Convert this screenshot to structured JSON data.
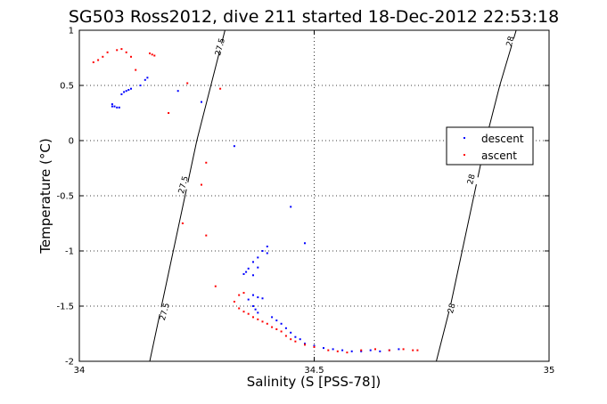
{
  "chart_data": {
    "type": "scatter",
    "title": "SG503 Ross2012, dive 211 started 18-Dec-2012 22:53:18",
    "xlabel": "Salinity (S [PSS-78])",
    "ylabel": "Temperature (°C)",
    "xlim": [
      34,
      35
    ],
    "ylim": [
      -2,
      1
    ],
    "xticks": [
      "34",
      "34.5",
      "35"
    ],
    "yticks": [
      "-2",
      "-1.5",
      "-1",
      "-0.5",
      "0",
      "0.5",
      "1"
    ],
    "grid": true,
    "legend_position": "right",
    "series": [
      {
        "name": "descent",
        "color": "#0000ff",
        "points": [
          [
            34.07,
            0.33
          ],
          [
            34.075,
            0.31
          ],
          [
            34.08,
            0.3
          ],
          [
            34.085,
            0.3
          ],
          [
            34.07,
            0.31
          ],
          [
            34.09,
            0.42
          ],
          [
            34.095,
            0.44
          ],
          [
            34.1,
            0.45
          ],
          [
            34.105,
            0.46
          ],
          [
            34.11,
            0.47
          ],
          [
            34.13,
            0.5
          ],
          [
            34.14,
            0.55
          ],
          [
            34.145,
            0.57
          ],
          [
            34.21,
            0.45
          ],
          [
            34.26,
            0.35
          ],
          [
            34.33,
            -0.05
          ],
          [
            34.45,
            -0.6
          ],
          [
            34.48,
            -0.93
          ],
          [
            34.4,
            -0.96
          ],
          [
            34.39,
            -1.0
          ],
          [
            34.4,
            -1.02
          ],
          [
            34.38,
            -1.06
          ],
          [
            34.37,
            -1.1
          ],
          [
            34.38,
            -1.15
          ],
          [
            34.37,
            -1.22
          ],
          [
            34.36,
            -1.16
          ],
          [
            34.355,
            -1.19
          ],
          [
            34.35,
            -1.21
          ],
          [
            34.37,
            -1.4
          ],
          [
            34.38,
            -1.42
          ],
          [
            34.39,
            -1.43
          ],
          [
            34.36,
            -1.44
          ],
          [
            34.37,
            -1.5
          ],
          [
            34.375,
            -1.53
          ],
          [
            34.38,
            -1.56
          ],
          [
            34.41,
            -1.6
          ],
          [
            34.42,
            -1.63
          ],
          [
            34.43,
            -1.66
          ],
          [
            34.44,
            -1.7
          ],
          [
            34.45,
            -1.74
          ],
          [
            34.46,
            -1.78
          ],
          [
            34.47,
            -1.8
          ],
          [
            34.48,
            -1.84
          ],
          [
            34.5,
            -1.86
          ],
          [
            34.52,
            -1.88
          ],
          [
            34.54,
            -1.89
          ],
          [
            34.56,
            -1.9
          ],
          [
            34.58,
            -1.91
          ],
          [
            34.6,
            -1.91
          ],
          [
            34.62,
            -1.9
          ],
          [
            34.64,
            -1.91
          ],
          [
            34.66,
            -1.9
          ],
          [
            34.68,
            -1.89
          ]
        ]
      },
      {
        "name": "ascent",
        "color": "#ff0000",
        "points": [
          [
            34.03,
            0.71
          ],
          [
            34.04,
            0.73
          ],
          [
            34.05,
            0.76
          ],
          [
            34.06,
            0.8
          ],
          [
            34.08,
            0.82
          ],
          [
            34.09,
            0.83
          ],
          [
            34.1,
            0.8
          ],
          [
            34.11,
            0.76
          ],
          [
            34.12,
            0.64
          ],
          [
            34.15,
            0.79
          ],
          [
            34.155,
            0.78
          ],
          [
            34.16,
            0.77
          ],
          [
            34.19,
            0.25
          ],
          [
            34.23,
            0.52
          ],
          [
            34.3,
            0.47
          ],
          [
            34.27,
            -0.2
          ],
          [
            34.26,
            -0.4
          ],
          [
            34.22,
            -0.75
          ],
          [
            34.27,
            -0.86
          ],
          [
            34.29,
            -1.32
          ],
          [
            34.35,
            -1.38
          ],
          [
            34.34,
            -1.4
          ],
          [
            34.33,
            -1.46
          ],
          [
            34.34,
            -1.52
          ],
          [
            34.35,
            -1.55
          ],
          [
            34.36,
            -1.57
          ],
          [
            34.37,
            -1.6
          ],
          [
            34.38,
            -1.62
          ],
          [
            34.39,
            -1.64
          ],
          [
            34.4,
            -1.66
          ],
          [
            34.41,
            -1.69
          ],
          [
            34.42,
            -1.71
          ],
          [
            34.43,
            -1.73
          ],
          [
            34.44,
            -1.77
          ],
          [
            34.45,
            -1.8
          ],
          [
            34.46,
            -1.82
          ],
          [
            34.48,
            -1.85
          ],
          [
            34.5,
            -1.87
          ],
          [
            34.53,
            -1.9
          ],
          [
            34.55,
            -1.91
          ],
          [
            34.57,
            -1.92
          ],
          [
            34.6,
            -1.9
          ],
          [
            34.63,
            -1.89
          ],
          [
            34.66,
            -1.9
          ],
          [
            34.69,
            -1.89
          ],
          [
            34.71,
            -1.9
          ],
          [
            34.72,
            -1.9
          ]
        ]
      }
    ],
    "contours": [
      {
        "label": "27.5",
        "path": [
          [
            34.15,
            -2
          ],
          [
            34.175,
            -1.5
          ],
          [
            34.2,
            -1.0
          ],
          [
            34.225,
            -0.5
          ],
          [
            34.25,
            0.0
          ],
          [
            34.28,
            0.5
          ],
          [
            34.31,
            1.0
          ]
        ]
      },
      {
        "label": "28",
        "path": [
          [
            34.76,
            -2
          ],
          [
            34.79,
            -1.5
          ],
          [
            34.815,
            -1.0
          ],
          [
            34.84,
            -0.5
          ],
          [
            34.865,
            0.0
          ],
          [
            34.895,
            0.5
          ],
          [
            34.93,
            1.0
          ]
        ]
      }
    ],
    "contour_labels": [
      {
        "text": "27.5",
        "x": 34.299,
        "y": 0.85
      },
      {
        "text": "27.5",
        "x": 34.221,
        "y": -0.4
      },
      {
        "text": "27.5",
        "x": 34.181,
        "y": -1.55
      },
      {
        "text": "28",
        "x": 34.917,
        "y": 0.9
      },
      {
        "text": "28",
        "x": 34.834,
        "y": -0.35
      },
      {
        "text": "28",
        "x": 34.792,
        "y": -1.52
      }
    ]
  }
}
